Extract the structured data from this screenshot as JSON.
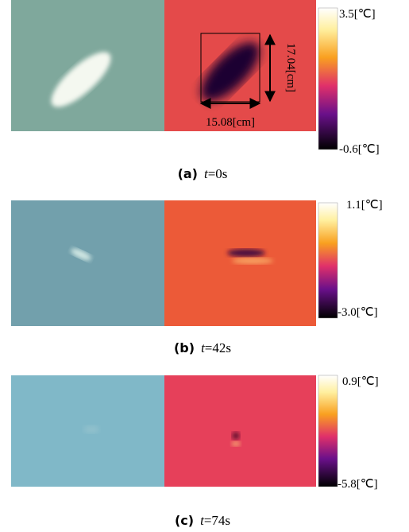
{
  "panels": [
    {
      "label": "(a)",
      "time_var": "t",
      "time_value": "=0s",
      "scale_max": "3.5[℃]",
      "scale_min": "-0.6[℃]",
      "dimensions": {
        "width": "15.08[cm]",
        "height": "17.04[cm]"
      }
    },
    {
      "label": "(b)",
      "time_var": "t",
      "time_value": "=42s",
      "scale_max": "1.1[℃]",
      "scale_min": "-3.0[℃]"
    },
    {
      "label": "(c)",
      "time_var": "t",
      "time_value": "=74s",
      "scale_max": "0.9[℃]",
      "scale_min": "-5.8[℃]"
    }
  ]
}
